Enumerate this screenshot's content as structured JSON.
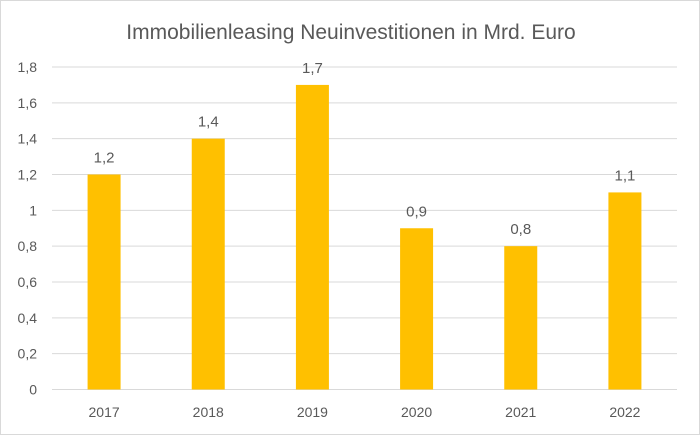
{
  "chart_data": {
    "type": "bar",
    "title": "Immobilienleasing Neuinvestitionen in Mrd. Euro",
    "categories": [
      "2017",
      "2018",
      "2019",
      "2020",
      "2021",
      "2022"
    ],
    "values": [
      1.2,
      1.4,
      1.7,
      0.9,
      0.8,
      1.1
    ],
    "data_labels": [
      "1,2",
      "1,4",
      "1,7",
      "0,9",
      "0,8",
      "1,1"
    ],
    "xlabel": "",
    "ylabel": "",
    "ylim": [
      0,
      1.8
    ],
    "yticks": [
      0,
      0.2,
      0.4,
      0.6,
      0.8,
      1,
      1.2,
      1.4,
      1.6,
      1.8
    ],
    "ytick_labels": [
      "0",
      "0,2",
      "0,4",
      "0,6",
      "0,8",
      "1",
      "1,2",
      "1,4",
      "1,6",
      "1,8"
    ],
    "grid": true,
    "legend": "none",
    "bar_color": "#FFC000",
    "grid_color": "#D9D9D9"
  }
}
